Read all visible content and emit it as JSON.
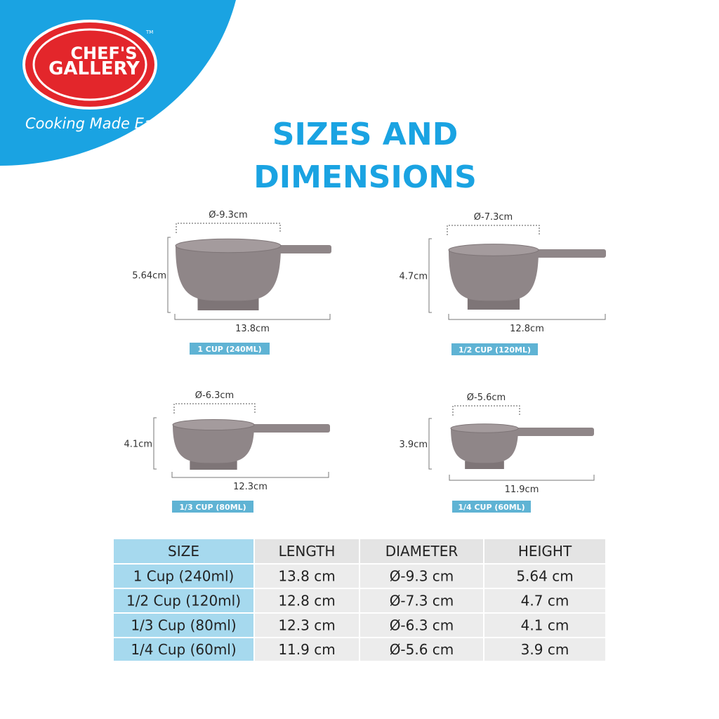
{
  "brand": {
    "name_top": "CHEF'S",
    "name_bottom": "GALLERY",
    "trademark": "TM",
    "tagline": "Cooking Made Easy"
  },
  "title": {
    "line1": "SIZES AND",
    "line2": "DIMENSIONS"
  },
  "items": [
    {
      "diameter": "Ø-9.3cm",
      "height": "5.64cm",
      "length": "13.8cm",
      "label": "1 CUP (240ML)"
    },
    {
      "diameter": "Ø-7.3cm",
      "height": "4.7cm",
      "length": "12.8cm",
      "label": "1/2 CUP (120ML)"
    },
    {
      "diameter": "Ø-6.3cm",
      "height": "4.1cm",
      "length": "12.3cm",
      "label": "1/3 CUP (80ML)"
    },
    {
      "diameter": "Ø-5.6cm",
      "height": "3.9cm",
      "length": "11.9cm",
      "label": "1/4 CUP (60ML)"
    }
  ],
  "table": {
    "header": [
      "SIZE",
      "LENGTH",
      "DIAMETER",
      "HEIGHT"
    ],
    "rows": [
      [
        "1 Cup (240ml)",
        "13.8 cm",
        "Ø-9.3 cm",
        "5.64 cm"
      ],
      [
        "1/2 Cup (120ml)",
        "12.8 cm",
        "Ø-7.3 cm",
        "4.7 cm"
      ],
      [
        "1/3 Cup (80ml)",
        "12.3 cm",
        "Ø-6.3 cm",
        "4.1 cm"
      ],
      [
        "1/4 Cup (60ml)",
        "11.9 cm",
        "Ø-5.6 cm",
        "3.9 cm"
      ]
    ]
  }
}
